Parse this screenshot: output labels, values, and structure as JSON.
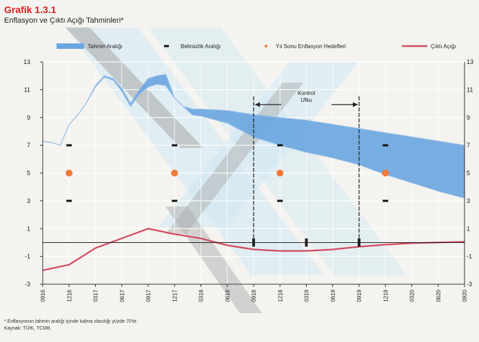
{
  "header": {
    "title": "Grafik 1.3.1",
    "subtitle": "Enflasyon ve Çıktı Açığı Tahminleri*"
  },
  "footnotes": [
    "* Enflasyonun tahmin aralığı içinde kalma olasılığı yüzde 70'tir.",
    "Kaynak: TÜİK, TCMB."
  ],
  "colors": {
    "band": "#6aa6e0",
    "line_blue": "#8cb6e6",
    "output_gap": "#d2485e",
    "target": "#f07a3a",
    "uncertainty": "#111111",
    "watermark_blue": "#cfe8f4",
    "watermark_gray": "#a8a8a8"
  },
  "chart_data": {
    "type": "line",
    "title": "Grafik 1.3.1",
    "subtitle": "Enflasyon ve Çıktı Açığı Tahminleri*",
    "categories": [
      "0916",
      "1216",
      "0317",
      "0617",
      "0917",
      "1217",
      "0318",
      "0618",
      "0918",
      "1218",
      "0319",
      "0619",
      "0919",
      "1219",
      "0320",
      "0620",
      "0920"
    ],
    "ylim": [
      -3,
      13
    ],
    "yticks": [
      -3,
      -1,
      1,
      3,
      5,
      7,
      9,
      11,
      13
    ],
    "legend": [
      "Tahmin Aralığı",
      "Belirsizlik Aralığı",
      "Yıl Sonu Enflasyon Hedefleri",
      "Çıktı Açığı"
    ],
    "legend_position": "top",
    "series": [
      {
        "name": "Tahmin Aralığı",
        "kind": "band",
        "x": [
          "0916",
          "1016",
          "1116",
          "1216",
          "0117",
          "0217",
          "0317",
          "0417",
          "0517",
          "0617",
          "0717",
          "0817",
          "0917",
          "1017",
          "1117",
          "1217",
          "0118",
          "0218",
          "0318",
          "0618",
          "0918",
          "1218",
          "0319",
          "0619",
          "0919",
          "1219",
          "0320",
          "0620",
          "0920"
        ],
        "lower": [
          7.3,
          7.2,
          7.0,
          8.5,
          9.2,
          10.1,
          11.2,
          11.9,
          11.7,
          10.9,
          9.8,
          10.7,
          11.2,
          11.4,
          11.3,
          10.4,
          9.8,
          9.2,
          9.1,
          8.6,
          7.6,
          7.0,
          6.5,
          6.1,
          5.6,
          4.9,
          4.3,
          3.7,
          3.2
        ],
        "upper": [
          7.3,
          7.2,
          7.0,
          8.5,
          9.2,
          10.1,
          11.3,
          12.0,
          11.8,
          11.1,
          10.0,
          11.0,
          11.8,
          12.0,
          12.1,
          10.4,
          9.8,
          9.6,
          9.6,
          9.5,
          9.2,
          9.0,
          8.8,
          8.5,
          8.2,
          7.9,
          7.6,
          7.3,
          7.0
        ]
      },
      {
        "name": "Belirsizlik Aralığı",
        "kind": "markers",
        "x": [
          "1216",
          "1217",
          "1218",
          "1219"
        ],
        "upper": [
          7,
          7,
          7,
          7
        ],
        "lower": [
          3,
          3,
          3,
          3
        ]
      },
      {
        "name": "Yıl Sonu Enflasyon Hedefleri",
        "kind": "points",
        "x": [
          "1216",
          "1217",
          "1218",
          "1219"
        ],
        "values": [
          5,
          5,
          5,
          5
        ]
      },
      {
        "name": "Çıktı Açığı",
        "kind": "line",
        "x": [
          "0916",
          "1216",
          "0317",
          "0617",
          "0917",
          "1217",
          "0318",
          "0618",
          "0918",
          "1218",
          "0319",
          "0619",
          "0919",
          "1219",
          "0320",
          "0620",
          "0920"
        ],
        "values": [
          -2.0,
          -1.6,
          -0.4,
          0.3,
          1.0,
          0.6,
          0.3,
          -0.2,
          -0.5,
          -0.6,
          -0.6,
          -0.5,
          -0.3,
          -0.15,
          -0.05,
          0.0,
          0.05
        ]
      }
    ],
    "annotations": [
      {
        "text_lines": [
          "Kontrol",
          "Ufku"
        ],
        "from": "0918",
        "to": "0919"
      }
    ]
  }
}
